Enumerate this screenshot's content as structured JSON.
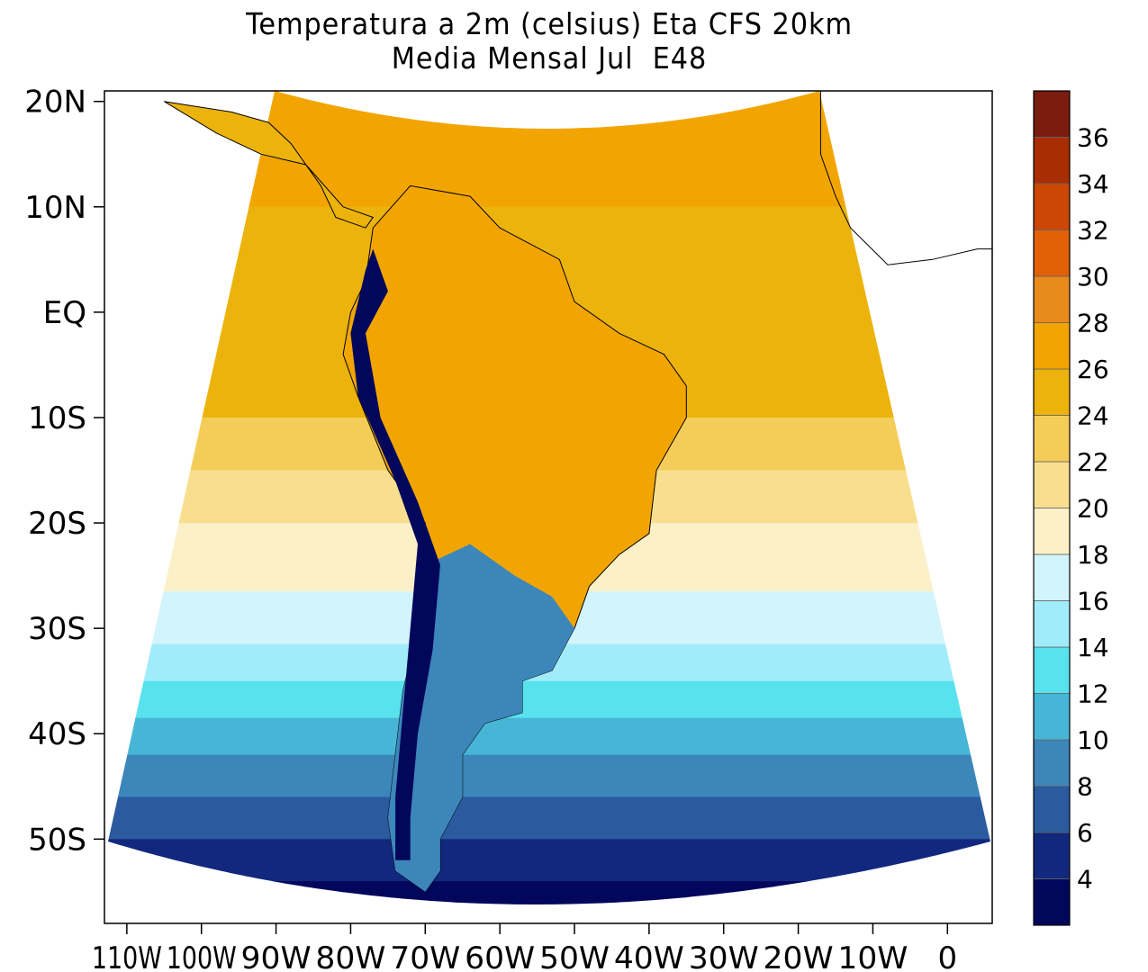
{
  "chart_data": {
    "type": "heatmap",
    "title": "Temperatura a 2m (celsius) Eta CFS 20km",
    "subtitle": "Media Mensal Jul  E48",
    "variable": "2 m air temperature",
    "units": "celsius",
    "projection": "map (South America and tropical Atlantic)",
    "x_axis": {
      "lon_range": [
        -113,
        6
      ],
      "ticks": [
        {
          "value": -110,
          "label": "110W"
        },
        {
          "value": -100,
          "label": "100W"
        },
        {
          "value": -90,
          "label": "90W"
        },
        {
          "value": -80,
          "label": "80W"
        },
        {
          "value": -70,
          "label": "70W"
        },
        {
          "value": -60,
          "label": "60W"
        },
        {
          "value": -50,
          "label": "50W"
        },
        {
          "value": -40,
          "label": "40W"
        },
        {
          "value": -30,
          "label": "30W"
        },
        {
          "value": -20,
          "label": "20W"
        },
        {
          "value": -10,
          "label": "10W"
        },
        {
          "value": 0,
          "label": "0"
        }
      ]
    },
    "y_axis": {
      "lat_range": [
        -58,
        21
      ],
      "ticks": [
        {
          "value": 20,
          "label": "20N"
        },
        {
          "value": 10,
          "label": "10N"
        },
        {
          "value": 0,
          "label": "EQ"
        },
        {
          "value": -10,
          "label": "10S"
        },
        {
          "value": -20,
          "label": "20S"
        },
        {
          "value": -30,
          "label": "30S"
        },
        {
          "value": -40,
          "label": "40S"
        },
        {
          "value": -50,
          "label": "50S"
        }
      ]
    },
    "colorbar": {
      "levels": [
        {
          "range": [
            null,
            4
          ],
          "color": "#02075c"
        },
        {
          "range": [
            4,
            6
          ],
          "color": "#12287e"
        },
        {
          "range": [
            6,
            8
          ],
          "color": "#2b5a9f"
        },
        {
          "range": [
            8,
            10
          ],
          "color": "#3c86ba"
        },
        {
          "range": [
            10,
            12
          ],
          "color": "#47b6d6"
        },
        {
          "range": [
            12,
            14
          ],
          "color": "#58e2ee"
        },
        {
          "range": [
            14,
            16
          ],
          "color": "#a1ecfb"
        },
        {
          "range": [
            16,
            18
          ],
          "color": "#d2f4fc"
        },
        {
          "range": [
            18,
            20
          ],
          "color": "#fcf0c8"
        },
        {
          "range": [
            20,
            22
          ],
          "color": "#f8df8f"
        },
        {
          "range": [
            22,
            24
          ],
          "color": "#f4cd58"
        },
        {
          "range": [
            24,
            26
          ],
          "color": "#ebb30c"
        },
        {
          "range": [
            26,
            28
          ],
          "color": "#f2a500"
        },
        {
          "range": [
            28,
            30
          ],
          "color": "#e88a1c"
        },
        {
          "range": [
            30,
            32
          ],
          "color": "#e06108"
        },
        {
          "range": [
            32,
            34
          ],
          "color": "#cc4703"
        },
        {
          "range": [
            34,
            36
          ],
          "color": "#a82d02"
        },
        {
          "range": [
            36,
            null
          ],
          "color": "#7a1c10"
        }
      ],
      "labels": [
        "4",
        "6",
        "8",
        "10",
        "12",
        "14",
        "16",
        "18",
        "20",
        "22",
        "24",
        "26",
        "28",
        "30",
        "32",
        "34",
        "36"
      ]
    },
    "zonal_mean_approx": [
      {
        "lat": 18,
        "ocean_temp": 26
      },
      {
        "lat": 10,
        "ocean_temp": 26
      },
      {
        "lat": 0,
        "ocean_temp": 25
      },
      {
        "lat": -10,
        "ocean_temp": 24
      },
      {
        "lat": -20,
        "ocean_temp": 20
      },
      {
        "lat": -30,
        "ocean_temp": 17
      },
      {
        "lat": -40,
        "ocean_temp": 11
      },
      {
        "lat": -50,
        "ocean_temp": 6
      },
      {
        "lat": -56,
        "ocean_temp": 3
      }
    ]
  }
}
